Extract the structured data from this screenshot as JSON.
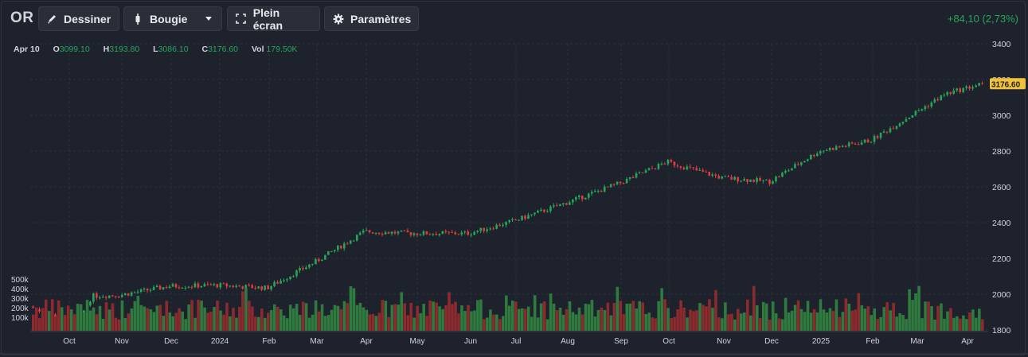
{
  "toolbar": {
    "symbol": "OR",
    "draw_label": "Dessiner",
    "chart_type_label": "Bougie",
    "fullscreen_label": "Plein écran",
    "settings_label": "Paramètres",
    "change": "+84,10 (2,73%)"
  },
  "legend": {
    "date": "Apr 10",
    "open_key": "O",
    "open": "3099.10",
    "high_key": "H",
    "high": "3193.80",
    "low_key": "L",
    "low": "3086.10",
    "close_key": "C",
    "close": "3176.60",
    "vol_key": "Vol",
    "vol": "179.50K"
  },
  "icons": {
    "draw": "pencil-icon",
    "chart_type": "candlestick-icon",
    "fullscreen": "fullscreen-icon",
    "settings": "gear-icon",
    "dropdown": "chevron-down-icon"
  },
  "colors": {
    "background": "#1e222d",
    "up": "#26a65b",
    "down": "#e33b3b",
    "volume_up": "#2f7a3f",
    "volume_down": "#8c2a2e",
    "last_price_tag": "#f0c23b"
  },
  "chart_data": {
    "type": "candlestick",
    "last_price_label": "3176.60",
    "y_axis": {
      "ticks": [
        "3400",
        "3200",
        "3000",
        "2800",
        "2600",
        "2400",
        "2200",
        "2000",
        "1800"
      ],
      "range": [
        1800,
        3400
      ]
    },
    "volume_axis": {
      "ticks": [
        "500k",
        "400k",
        "300k",
        "200k",
        "100k"
      ]
    },
    "x_axis": {
      "ticks": [
        "Oct",
        "Nov",
        "Dec",
        "2024",
        "Feb",
        "Mar",
        "Apr",
        "May",
        "Jun",
        "Jul",
        "Aug",
        "Sep",
        "Oct",
        "Nov",
        "Dec",
        "2025",
        "Feb",
        "Mar",
        "Apr"
      ]
    },
    "grid": true,
    "price_path": [
      {
        "month": "Sep 2023",
        "close": 1930
      },
      {
        "month": "Oct 2023",
        "close": 1830
      },
      {
        "month": "Oct 2023 end",
        "close": 1990
      },
      {
        "month": "Nov 2023",
        "close": 1995
      },
      {
        "month": "Dec 2023",
        "close": 2045
      },
      {
        "month": "Jan 2024",
        "close": 2050
      },
      {
        "month": "Feb 2024",
        "close": 2035
      },
      {
        "month": "Mar 2024",
        "close": 2180
      },
      {
        "month": "Apr 2024",
        "close": 2350
      },
      {
        "month": "May 2024",
        "close": 2340
      },
      {
        "month": "Jun 2024",
        "close": 2340
      },
      {
        "month": "Jul 2024",
        "close": 2410
      },
      {
        "month": "Aug 2024",
        "close": 2510
      },
      {
        "month": "Sep 2024",
        "close": 2620
      },
      {
        "month": "Oct 2024",
        "close": 2740
      },
      {
        "month": "Nov 2024",
        "close": 2650
      },
      {
        "month": "Dec 2024",
        "close": 2630
      },
      {
        "month": "Jan 2025",
        "close": 2800
      },
      {
        "month": "Feb 2025",
        "close": 2860
      },
      {
        "month": "Mar 2025",
        "close": 3120
      },
      {
        "month": "Apr 2025",
        "close": 3176.6
      }
    ]
  }
}
